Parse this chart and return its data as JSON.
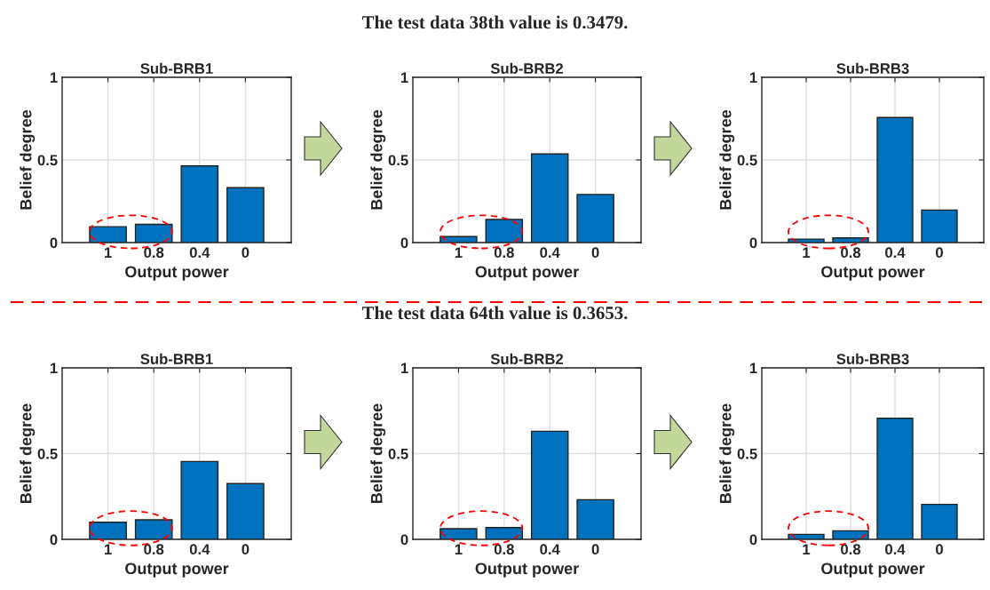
{
  "chart_data": [
    {
      "type": "bar",
      "annotations": [
        "The test data 38th value is 0.3479."
      ],
      "title": "Sub-BRB1",
      "xlabel": "Output power",
      "ylabel": "Belief degree",
      "categories": [
        "1",
        "0.8",
        "0.4",
        "0"
      ],
      "values": [
        0.096,
        0.11,
        0.464,
        0.332
      ],
      "color": "#0072bd",
      "ylim": [
        0,
        1
      ],
      "yticks": [
        0,
        0.5,
        1
      ],
      "grid": true
    },
    {
      "type": "bar",
      "title": "Sub-BRB2",
      "xlabel": "Output power",
      "ylabel": "Belief degree",
      "categories": [
        "1",
        "0.8",
        "0.4",
        "0"
      ],
      "values": [
        0.036,
        0.14,
        0.536,
        0.291
      ],
      "color": "#0072bd",
      "ylim": [
        0,
        1
      ],
      "yticks": [
        0,
        0.5,
        1
      ],
      "grid": true
    },
    {
      "type": "bar",
      "title": "Sub-BRB3",
      "xlabel": "Output power",
      "ylabel": "Belief degree",
      "categories": [
        "1",
        "0.8",
        "0.4",
        "0"
      ],
      "values": [
        0.021,
        0.028,
        0.757,
        0.197
      ],
      "color": "#0072bd",
      "ylim": [
        0,
        1
      ],
      "yticks": [
        0,
        0.5,
        1
      ],
      "grid": true
    },
    {
      "type": "bar",
      "annotations": [
        "The test data 64th value is 0.3653."
      ],
      "title": "Sub-BRB1",
      "xlabel": "Output power",
      "ylabel": "Belief degree",
      "categories": [
        "1",
        "0.8",
        "0.4",
        "0"
      ],
      "values": [
        0.1,
        0.114,
        0.454,
        0.325
      ],
      "color": "#0072bd",
      "ylim": [
        0,
        1
      ],
      "yticks": [
        0,
        0.5,
        1
      ],
      "grid": true
    },
    {
      "type": "bar",
      "title": "Sub-BRB2",
      "xlabel": "Output power",
      "ylabel": "Belief degree",
      "categories": [
        "1",
        "0.8",
        "0.4",
        "0"
      ],
      "values": [
        0.062,
        0.069,
        0.63,
        0.231
      ],
      "color": "#0072bd",
      "ylim": [
        0,
        1
      ],
      "yticks": [
        0,
        0.5,
        1
      ],
      "grid": true
    },
    {
      "type": "bar",
      "title": "Sub-BRB3",
      "xlabel": "Output power",
      "ylabel": "Belief degree",
      "categories": [
        "1",
        "0.8",
        "0.4",
        "0"
      ],
      "values": [
        0.029,
        0.05,
        0.706,
        0.204
      ],
      "color": "#0072bd",
      "ylim": [
        0,
        1
      ],
      "yticks": [
        0,
        0.5,
        1
      ],
      "grid": true
    }
  ]
}
